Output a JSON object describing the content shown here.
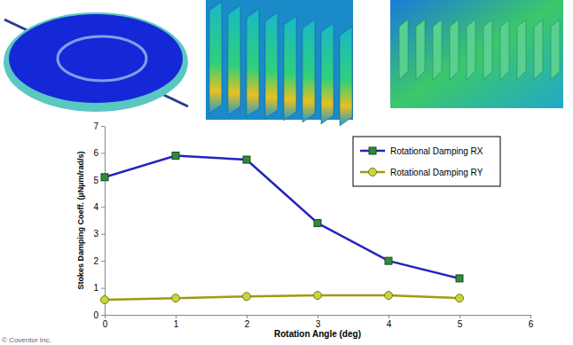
{
  "chart_data": {
    "type": "line",
    "x_label": "Rotation Angle (deg)",
    "y_label": "Stokes Damping Coeff. (µNµm/rad/s)",
    "annotations": [
      "© Coventor Inc."
    ],
    "x": [
      0,
      1,
      2,
      3,
      4,
      5
    ],
    "series": [
      {
        "name": "Rotational Damping RX",
        "color": "#2323c0",
        "marker": "square",
        "line_style": "solid",
        "values": [
          5.1,
          5.9,
          5.75,
          3.4,
          2.0,
          1.35
        ]
      },
      {
        "name": "Rotational Damping RY",
        "color": "#9c9c10",
        "marker": "circle",
        "line_style": "solid",
        "values": [
          0.56,
          0.62,
          0.68,
          0.72,
          0.72,
          0.62
        ]
      }
    ],
    "xlim": [
      0,
      6
    ],
    "xticks": [
      0,
      1,
      2,
      3,
      4,
      5,
      6
    ],
    "ylim": [
      0,
      7
    ],
    "yticks": [
      0,
      1,
      2,
      3,
      4,
      5,
      6,
      7
    ],
    "grid": false,
    "legend": "upper right"
  }
}
